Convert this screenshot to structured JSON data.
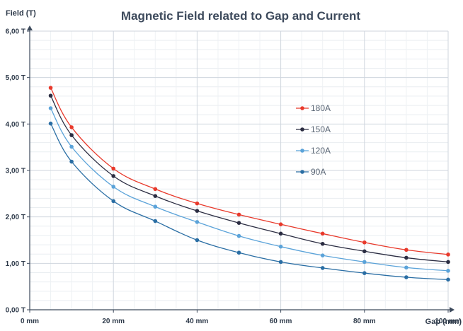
{
  "chart_data": {
    "type": "line",
    "title": "Magnetic Field related to Gap and Current",
    "ylabel": "Field (T)",
    "xlabel": "Gap (mm)",
    "xlim": [
      0,
      100
    ],
    "ylim": [
      0,
      6
    ],
    "x_ticks": [
      {
        "value": 0,
        "label": "0 mm"
      },
      {
        "value": 20,
        "label": "20 mm"
      },
      {
        "value": 40,
        "label": "40 mm"
      },
      {
        "value": 60,
        "label": "60 mm"
      },
      {
        "value": 80,
        "label": "80 mm"
      },
      {
        "value": 100,
        "label": "100 mm"
      }
    ],
    "y_ticks": [
      {
        "value": 0,
        "label": "0,00 T"
      },
      {
        "value": 1,
        "label": "1,00 T"
      },
      {
        "value": 2,
        "label": "2,00 T"
      },
      {
        "value": 3,
        "label": "3,00 T"
      },
      {
        "value": 4,
        "label": "4,00 T"
      },
      {
        "value": 5,
        "label": "5,00 T"
      },
      {
        "value": 6,
        "label": "6,00 T"
      }
    ],
    "x": [
      5,
      10,
      20,
      30,
      40,
      50,
      60,
      70,
      80,
      90,
      100
    ],
    "series": [
      {
        "name": "180A",
        "color": "#e8392b",
        "values": [
          4.78,
          3.93,
          3.04,
          2.6,
          2.29,
          2.05,
          1.84,
          1.64,
          1.45,
          1.29,
          1.19
        ]
      },
      {
        "name": "150A",
        "color": "#2b2d42",
        "values": [
          4.61,
          3.76,
          2.88,
          2.45,
          2.13,
          1.87,
          1.64,
          1.42,
          1.26,
          1.12,
          1.03
        ]
      },
      {
        "name": "120A",
        "color": "#5ba3d9",
        "values": [
          4.34,
          3.51,
          2.65,
          2.22,
          1.89,
          1.59,
          1.36,
          1.17,
          1.03,
          0.91,
          0.84
        ]
      },
      {
        "name": "90A",
        "color": "#2a6ea4",
        "values": [
          4.01,
          3.19,
          2.34,
          1.91,
          1.5,
          1.23,
          1.03,
          0.9,
          0.79,
          0.7,
          0.65
        ]
      }
    ],
    "grid": true,
    "legend_position": "right"
  }
}
